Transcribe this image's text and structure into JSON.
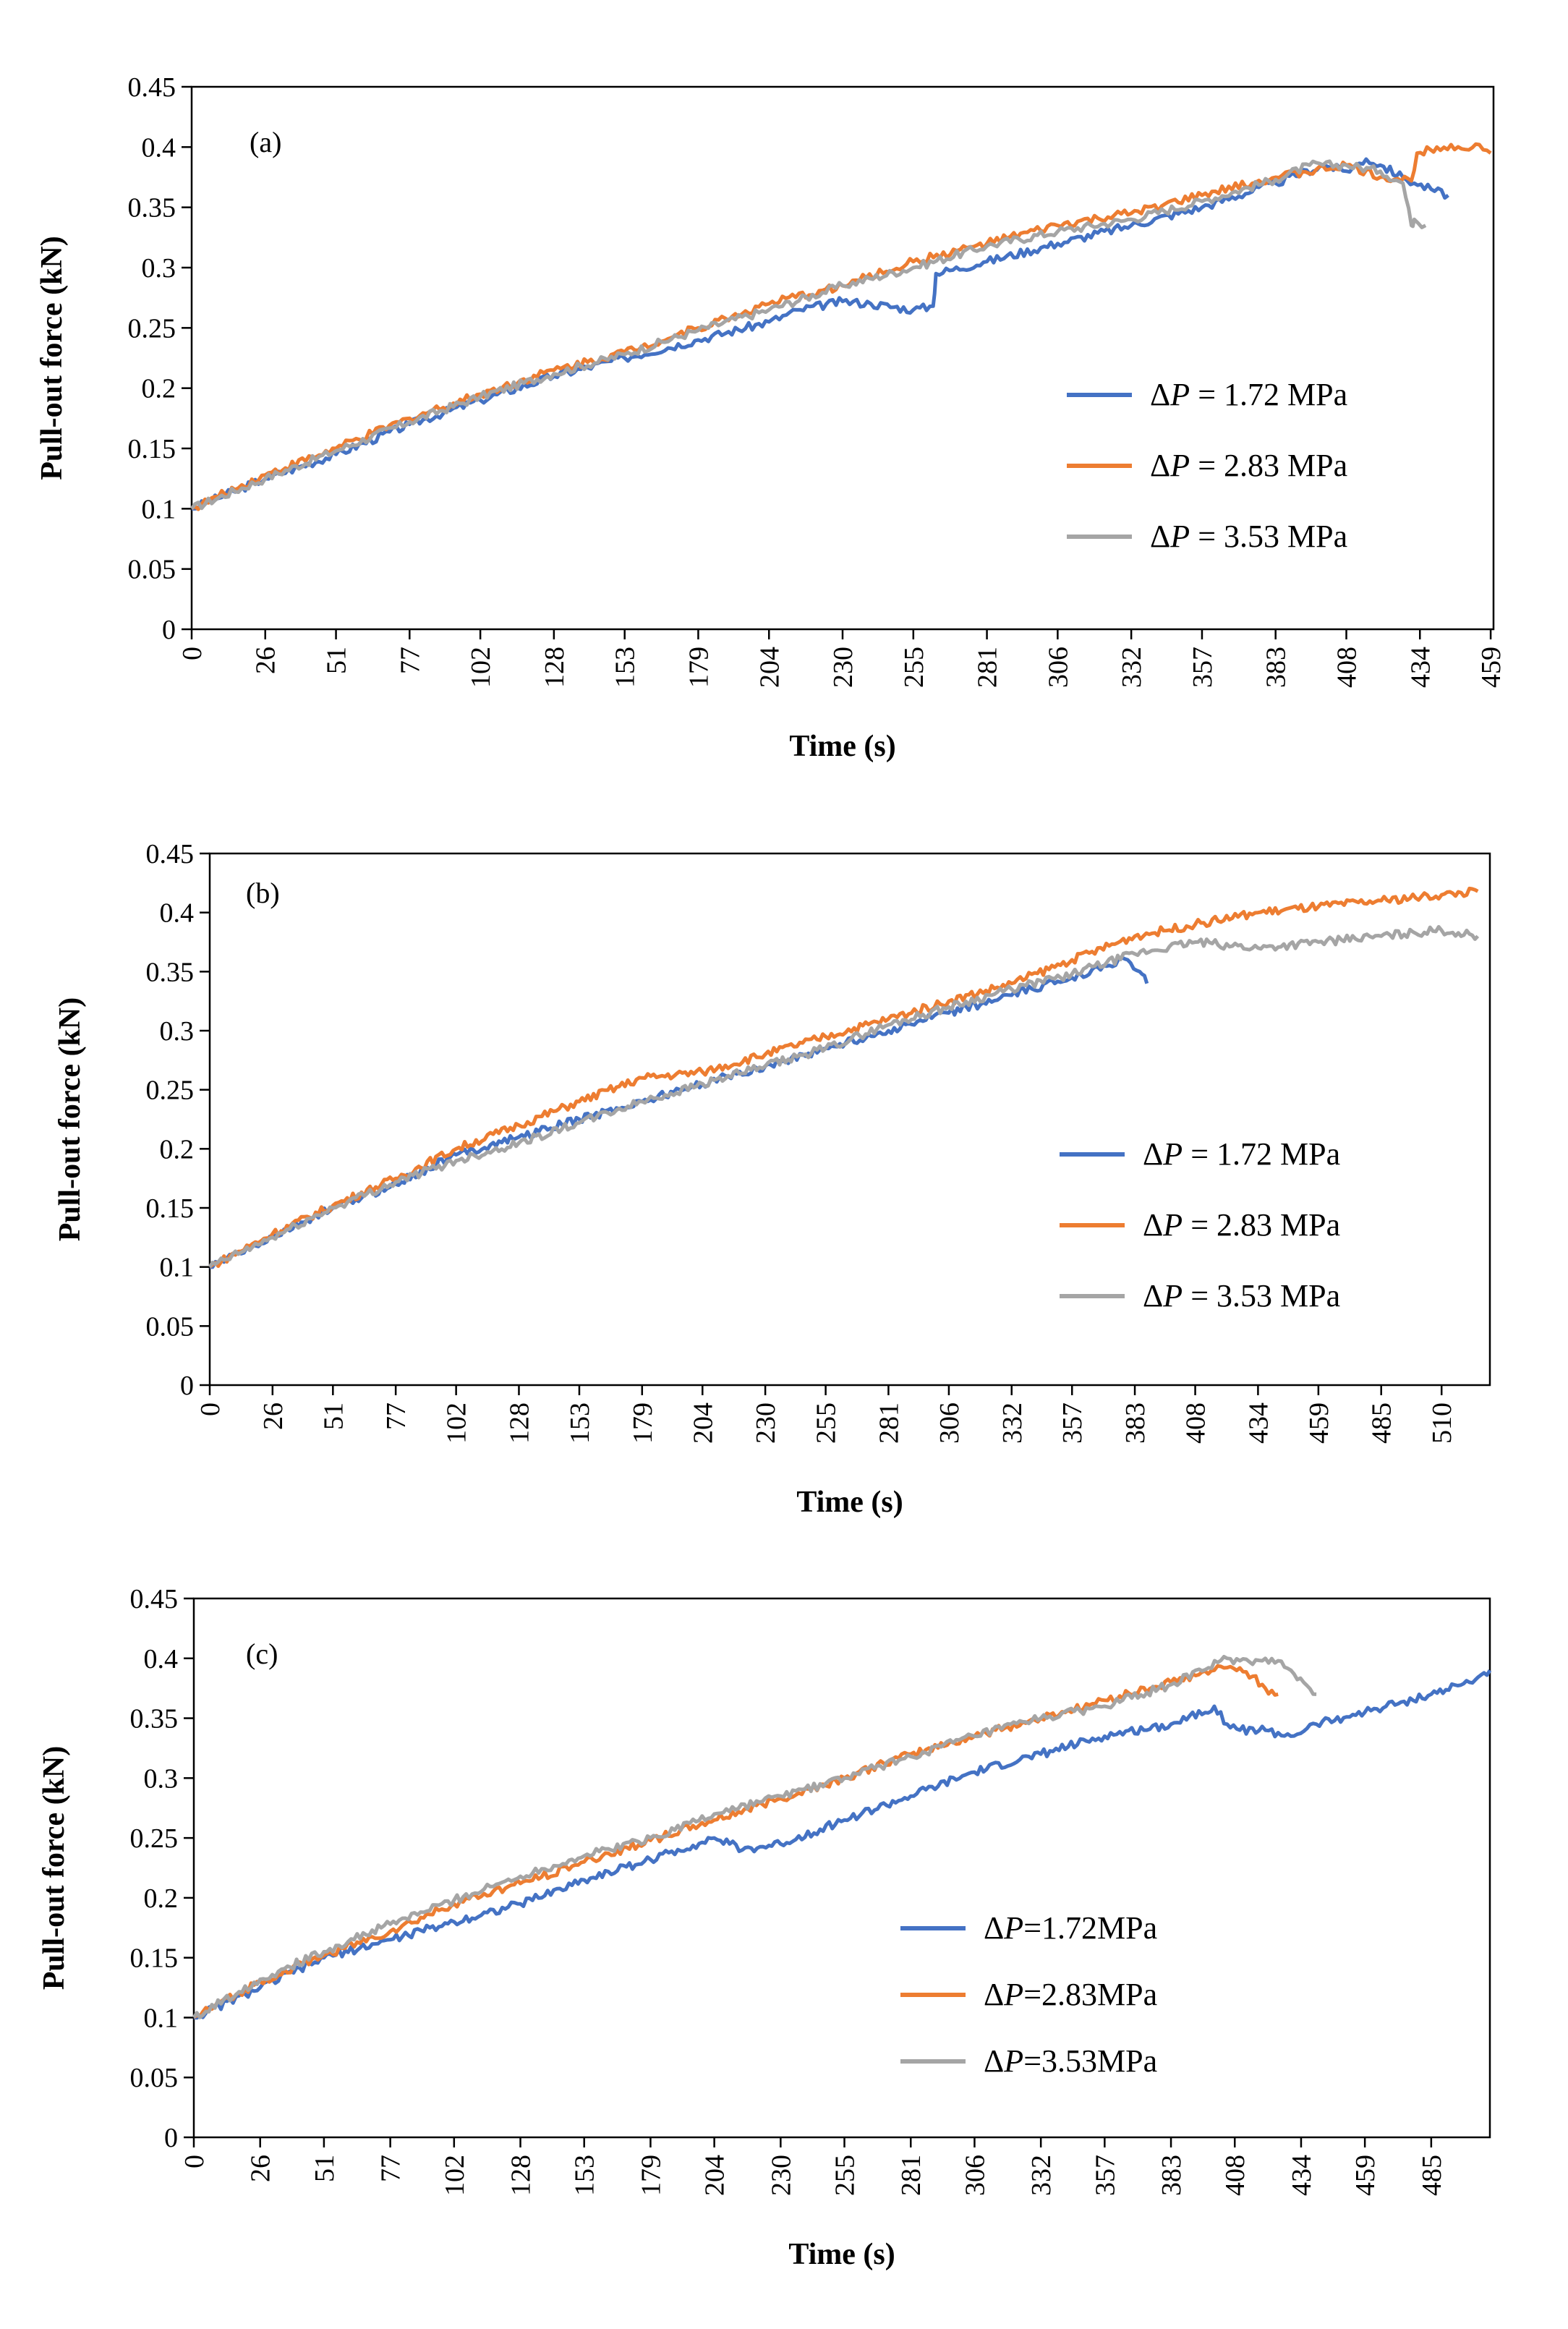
{
  "chart_data": [
    {
      "type": "line",
      "panel_label": "(a)",
      "xlabel": "Time (s)",
      "ylabel": "Pull-out force (kN)",
      "xlim": [
        0,
        460
      ],
      "ylim": [
        0,
        0.45
      ],
      "x_ticks": [
        "0",
        "26",
        "51",
        "77",
        "102",
        "128",
        "153",
        "179",
        "204",
        "230",
        "255",
        "281",
        "306",
        "332",
        "357",
        "383",
        "408",
        "434",
        "459"
      ],
      "y_ticks": [
        "0",
        "0.05",
        "0.1",
        "0.15",
        "0.2",
        "0.25",
        "0.3",
        "0.35",
        "0.4",
        "0.45"
      ],
      "legend": "right",
      "series": [
        {
          "name_prefix": "Δ",
          "name_symbol": "P",
          "name_suffix": " = 1.72 MPa",
          "color": "#4472C4",
          "x": [
            0,
            26,
            51,
            77,
            102,
            128,
            153,
            179,
            204,
            215,
            230,
            240,
            255,
            262,
            263,
            281,
            306,
            332,
            357,
            383,
            400,
            408,
            415,
            420,
            428,
            432,
            438,
            444
          ],
          "y": [
            0.1,
            0.125,
            0.145,
            0.17,
            0.19,
            0.21,
            0.225,
            0.24,
            0.255,
            0.265,
            0.272,
            0.27,
            0.265,
            0.268,
            0.295,
            0.305,
            0.32,
            0.335,
            0.35,
            0.37,
            0.385,
            0.38,
            0.39,
            0.385,
            0.375,
            0.37,
            0.365,
            0.36
          ]
        },
        {
          "name_prefix": "Δ",
          "name_symbol": "P",
          "name_suffix": " = 2.83 MPa",
          "color": "#ED7D31",
          "x": [
            0,
            26,
            51,
            77,
            102,
            128,
            153,
            179,
            204,
            230,
            255,
            281,
            306,
            332,
            357,
            383,
            408,
            420,
            431,
            433,
            440,
            445,
            450,
            455,
            459
          ],
          "y": [
            0.1,
            0.128,
            0.15,
            0.175,
            0.195,
            0.215,
            0.23,
            0.25,
            0.27,
            0.285,
            0.305,
            0.32,
            0.335,
            0.345,
            0.36,
            0.375,
            0.385,
            0.375,
            0.372,
            0.395,
            0.4,
            0.402,
            0.398,
            0.402,
            0.395
          ]
        },
        {
          "name_prefix": "Δ",
          "name_symbol": "P",
          "name_suffix": " = 3.53 MPa",
          "color": "#A5A5A5",
          "x": [
            0,
            26,
            51,
            77,
            102,
            128,
            153,
            179,
            204,
            230,
            255,
            281,
            306,
            332,
            357,
            383,
            395,
            408,
            420,
            428,
            431,
            432,
            436
          ],
          "y": [
            0.1,
            0.125,
            0.148,
            0.172,
            0.193,
            0.212,
            0.228,
            0.248,
            0.265,
            0.285,
            0.3,
            0.318,
            0.33,
            0.34,
            0.355,
            0.373,
            0.385,
            0.385,
            0.38,
            0.37,
            0.335,
            0.34,
            0.335
          ]
        }
      ]
    },
    {
      "type": "line",
      "panel_label": "(b)",
      "xlabel": "Time (s)",
      "ylabel": "Pull-out force (kN)",
      "xlim": [
        0,
        530
      ],
      "ylim": [
        0,
        0.45
      ],
      "x_ticks": [
        "0",
        "26",
        "51",
        "77",
        "102",
        "128",
        "153",
        "179",
        "204",
        "230",
        "255",
        "281",
        "306",
        "332",
        "357",
        "383",
        "408",
        "434",
        "459",
        "485",
        "510"
      ],
      "y_ticks": [
        "0",
        "0.05",
        "0.1",
        "0.15",
        "0.2",
        "0.25",
        "0.3",
        "0.35",
        "0.4",
        "0.45"
      ],
      "legend": "right",
      "series": [
        {
          "name_prefix": "Δ",
          "name_symbol": "P",
          "name_suffix": " = 1.72 MPa",
          "color": "#4472C4",
          "x": [
            0,
            26,
            51,
            77,
            102,
            128,
            153,
            179,
            204,
            230,
            255,
            281,
            306,
            332,
            357,
            370,
            380,
            385,
            388
          ],
          "y": [
            0.1,
            0.125,
            0.15,
            0.17,
            0.195,
            0.21,
            0.225,
            0.24,
            0.255,
            0.27,
            0.285,
            0.3,
            0.315,
            0.33,
            0.345,
            0.355,
            0.36,
            0.35,
            0.34
          ]
        },
        {
          "name_prefix": "Δ",
          "name_symbol": "P",
          "name_suffix": " = 2.83 MPa",
          "color": "#ED7D31",
          "x": [
            0,
            26,
            51,
            77,
            102,
            128,
            153,
            179,
            204,
            230,
            255,
            281,
            306,
            332,
            357,
            383,
            408,
            434,
            459,
            485,
            510,
            525
          ],
          "y": [
            0.1,
            0.128,
            0.152,
            0.175,
            0.2,
            0.22,
            0.24,
            0.26,
            0.265,
            0.28,
            0.295,
            0.31,
            0.325,
            0.34,
            0.36,
            0.38,
            0.39,
            0.4,
            0.405,
            0.41,
            0.415,
            0.418
          ]
        },
        {
          "name_prefix": "Δ",
          "name_symbol": "P",
          "name_suffix": " = 3.53 MPa",
          "color": "#A5A5A5",
          "x": [
            0,
            26,
            51,
            77,
            102,
            128,
            153,
            179,
            204,
            230,
            255,
            281,
            306,
            332,
            357,
            383,
            408,
            434,
            459,
            485,
            510,
            525
          ],
          "y": [
            0.1,
            0.125,
            0.15,
            0.172,
            0.19,
            0.205,
            0.222,
            0.24,
            0.255,
            0.27,
            0.285,
            0.305,
            0.32,
            0.335,
            0.348,
            0.365,
            0.375,
            0.37,
            0.375,
            0.38,
            0.385,
            0.38
          ]
        }
      ]
    },
    {
      "type": "line",
      "panel_label": "(c)",
      "xlabel": "Time (s)",
      "ylabel": "Pull-out force (kN)",
      "xlim": [
        0,
        508
      ],
      "ylim": [
        0,
        0.45
      ],
      "x_ticks": [
        "0",
        "26",
        "51",
        "77",
        "102",
        "128",
        "153",
        "179",
        "204",
        "230",
        "255",
        "281",
        "306",
        "332",
        "357",
        "383",
        "408",
        "434",
        "459",
        "485"
      ],
      "y_ticks": [
        "0",
        "0.05",
        "0.1",
        "0.15",
        "0.2",
        "0.25",
        "0.3",
        "0.35",
        "0.4",
        "0.45"
      ],
      "legend": "right",
      "series": [
        {
          "name_prefix": "Δ",
          "name_symbol": "P",
          "name_suffix": "=1.72MPa",
          "color": "#4472C4",
          "x": [
            0,
            26,
            51,
            77,
            102,
            128,
            153,
            179,
            204,
            210,
            215,
            230,
            255,
            281,
            306,
            332,
            357,
            383,
            400,
            405,
            410,
            420,
            430,
            440,
            459,
            485,
            500,
            508
          ],
          "y": [
            0.1,
            0.125,
            0.15,
            0.165,
            0.18,
            0.195,
            0.215,
            0.232,
            0.25,
            0.245,
            0.24,
            0.245,
            0.265,
            0.285,
            0.305,
            0.32,
            0.335,
            0.345,
            0.36,
            0.345,
            0.34,
            0.34,
            0.335,
            0.345,
            0.355,
            0.37,
            0.38,
            0.39
          ]
        },
        {
          "name_prefix": "Δ",
          "name_symbol": "P",
          "name_suffix": "=2.83MPa",
          "color": "#ED7D31",
          "x": [
            0,
            26,
            51,
            77,
            102,
            128,
            153,
            179,
            204,
            230,
            255,
            281,
            306,
            332,
            357,
            383,
            400,
            410,
            415,
            420,
            425
          ],
          "y": [
            0.1,
            0.13,
            0.152,
            0.172,
            0.195,
            0.212,
            0.23,
            0.248,
            0.265,
            0.283,
            0.3,
            0.32,
            0.335,
            0.35,
            0.365,
            0.38,
            0.39,
            0.392,
            0.385,
            0.375,
            0.37
          ]
        },
        {
          "name_prefix": "Δ",
          "name_symbol": "P",
          "name_suffix": "=3.53MPa",
          "color": "#A5A5A5",
          "x": [
            0,
            26,
            51,
            77,
            102,
            128,
            153,
            179,
            204,
            230,
            255,
            281,
            306,
            332,
            357,
            383,
            405,
            410,
            415,
            420,
            425,
            430,
            435,
            440
          ],
          "y": [
            0.1,
            0.132,
            0.155,
            0.178,
            0.198,
            0.218,
            0.235,
            0.25,
            0.27,
            0.285,
            0.3,
            0.318,
            0.335,
            0.35,
            0.36,
            0.378,
            0.4,
            0.398,
            0.395,
            0.4,
            0.398,
            0.39,
            0.38,
            0.37
          ]
        }
      ]
    }
  ]
}
